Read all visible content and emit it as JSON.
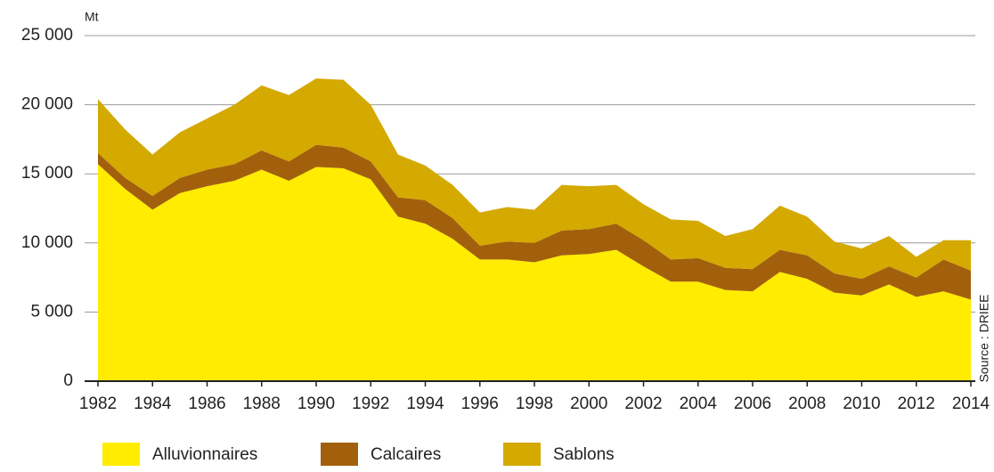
{
  "chart_data": {
    "type": "stacked_area",
    "y_unit": "Mt",
    "source": "Source : DRIEE",
    "x": [
      1982,
      1983,
      1984,
      1985,
      1986,
      1987,
      1988,
      1989,
      1990,
      1991,
      1992,
      1993,
      1994,
      1995,
      1996,
      1997,
      1998,
      1999,
      2000,
      2001,
      2002,
      2003,
      2004,
      2005,
      2006,
      2007,
      2008,
      2009,
      2010,
      2011,
      2012,
      2013,
      2014
    ],
    "series": [
      {
        "name": "Alluvionnaires",
        "color": "#ffec00",
        "values": [
          15700,
          13900,
          12400,
          13600,
          14100,
          14500,
          15300,
          14500,
          15500,
          15400,
          14600,
          11900,
          11400,
          10300,
          8800,
          8800,
          8600,
          9100,
          9200,
          9500,
          8300,
          7200,
          7200,
          6600,
          6500,
          7900,
          7400,
          6400,
          6200,
          7000,
          6100,
          6500,
          5900
        ]
      },
      {
        "name": "Calcaires",
        "color": "#a3600c",
        "values": [
          800,
          800,
          1000,
          1100,
          1200,
          1200,
          1400,
          1400,
          1600,
          1500,
          1300,
          1400,
          1700,
          1500,
          1000,
          1300,
          1400,
          1800,
          1800,
          1900,
          1900,
          1600,
          1700,
          1600,
          1600,
          1600,
          1700,
          1400,
          1200,
          1300,
          1400,
          2300,
          2100
        ]
      },
      {
        "name": "Sablons",
        "color": "#d4a900",
        "values": [
          3900,
          3500,
          3000,
          3300,
          3700,
          4300,
          4700,
          4800,
          4800,
          4900,
          4100,
          3100,
          2500,
          2400,
          2400,
          2500,
          2400,
          3300,
          3100,
          2800,
          2600,
          2900,
          2700,
          2300,
          2900,
          3200,
          2800,
          2300,
          2200,
          2200,
          1500,
          1400,
          2200
        ]
      }
    ],
    "xlim": [
      1982,
      2014
    ],
    "xticks": [
      1982,
      1984,
      1986,
      1988,
      1990,
      1992,
      1994,
      1996,
      1998,
      2000,
      2002,
      2004,
      2006,
      2008,
      2010,
      2012,
      2014
    ],
    "ylim": [
      0,
      25000
    ],
    "yticks": [
      0,
      {
        "value": 5000,
        "label": "5 000"
      },
      {
        "value": 10000,
        "label": "10 000"
      },
      {
        "value": 15000,
        "label": "15 000"
      },
      {
        "value": 20000,
        "label": "20 000"
      },
      {
        "value": 25000,
        "label": "25 000"
      }
    ],
    "grid": true,
    "legend": "bottom"
  }
}
